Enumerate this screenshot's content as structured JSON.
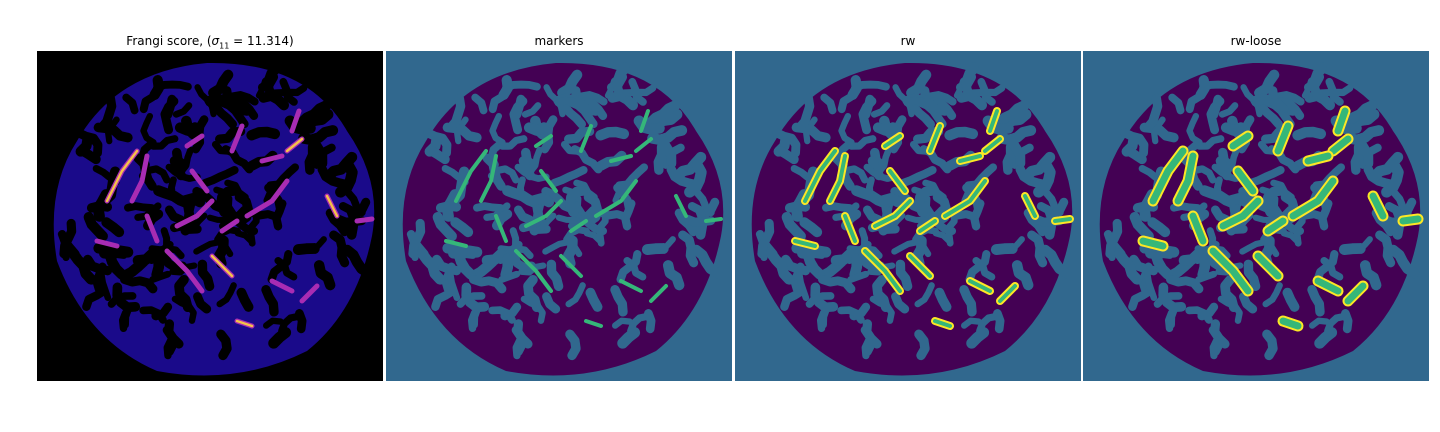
{
  "figure": {
    "panels": [
      {
        "title_prefix": "Frangi score, (",
        "title_math": "σ",
        "title_sub": "11",
        "title_suffix": " = 11.314)",
        "kind": "frangi"
      },
      {
        "title": "markers",
        "kind": "markers"
      },
      {
        "title": "rw",
        "kind": "rw"
      },
      {
        "title": "rw-loose",
        "kind": "rw-loose"
      }
    ]
  },
  "colors": {
    "frangi_background": "#000000",
    "frangi_tissue": "#1a0a8a",
    "frangi_high": "#f5c24a",
    "frangi_mid": "#a82cb3",
    "label_background": "#31688e",
    "label_tissue": "#440154",
    "label_marker": "#35b779",
    "label_edge": "#fde725"
  }
}
